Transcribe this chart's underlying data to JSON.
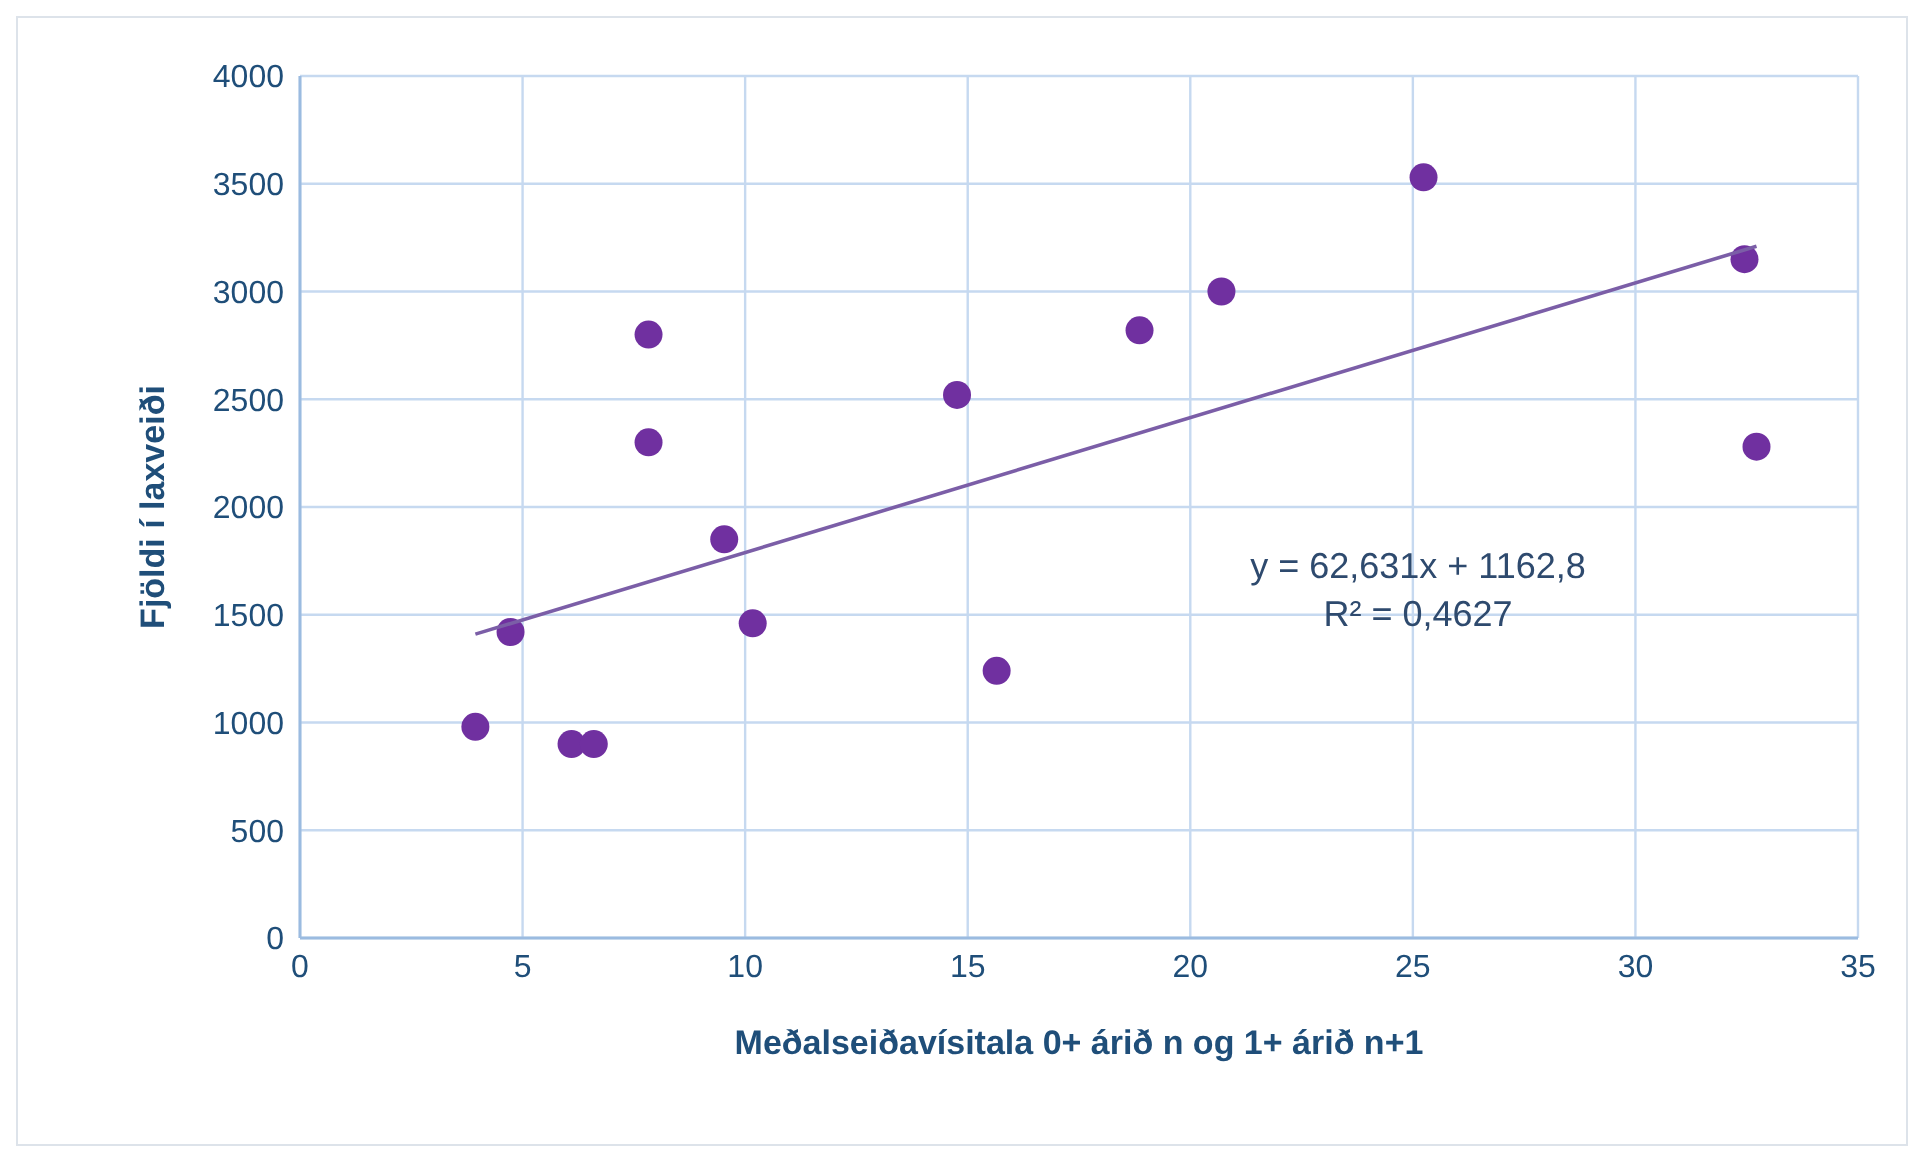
{
  "chart_data": {
    "type": "scatter",
    "xlabel": "Meðalseiðavísitala 0+ árið n og 1+ árið n+1",
    "ylabel": "Fjöldi í laxveiði",
    "xlim": [
      0,
      35
    ],
    "xticks": [
      0,
      5,
      10,
      15,
      20,
      25,
      30,
      35
    ],
    "ylim": [
      0,
      4000
    ],
    "yticks": [
      0,
      500,
      1000,
      1500,
      2000,
      2500,
      3000,
      3500,
      4000
    ],
    "grid": true,
    "series": [
      {
        "marker": "circle",
        "color": "#7030a0",
        "x": [
          3.94,
          4.73,
          6.1,
          6.6,
          7.83,
          7.83,
          9.53,
          10.17,
          14.76,
          15.65,
          18.86,
          20.7,
          25.24,
          32.45,
          32.72
        ],
        "values": [
          980,
          1420,
          900,
          900,
          2800,
          2300,
          1850,
          1460,
          2520,
          1240,
          2820,
          3000,
          3530,
          3150,
          2280
        ]
      },
      {
        "type": "line",
        "marker": "none",
        "color": "#7b5ea7",
        "x": [
          3.94,
          32.72
        ],
        "values": [
          1410,
          3210
        ]
      }
    ],
    "annotations": [
      "y = 62,631x + 1162,8",
      "R² = 0,4627"
    ]
  }
}
